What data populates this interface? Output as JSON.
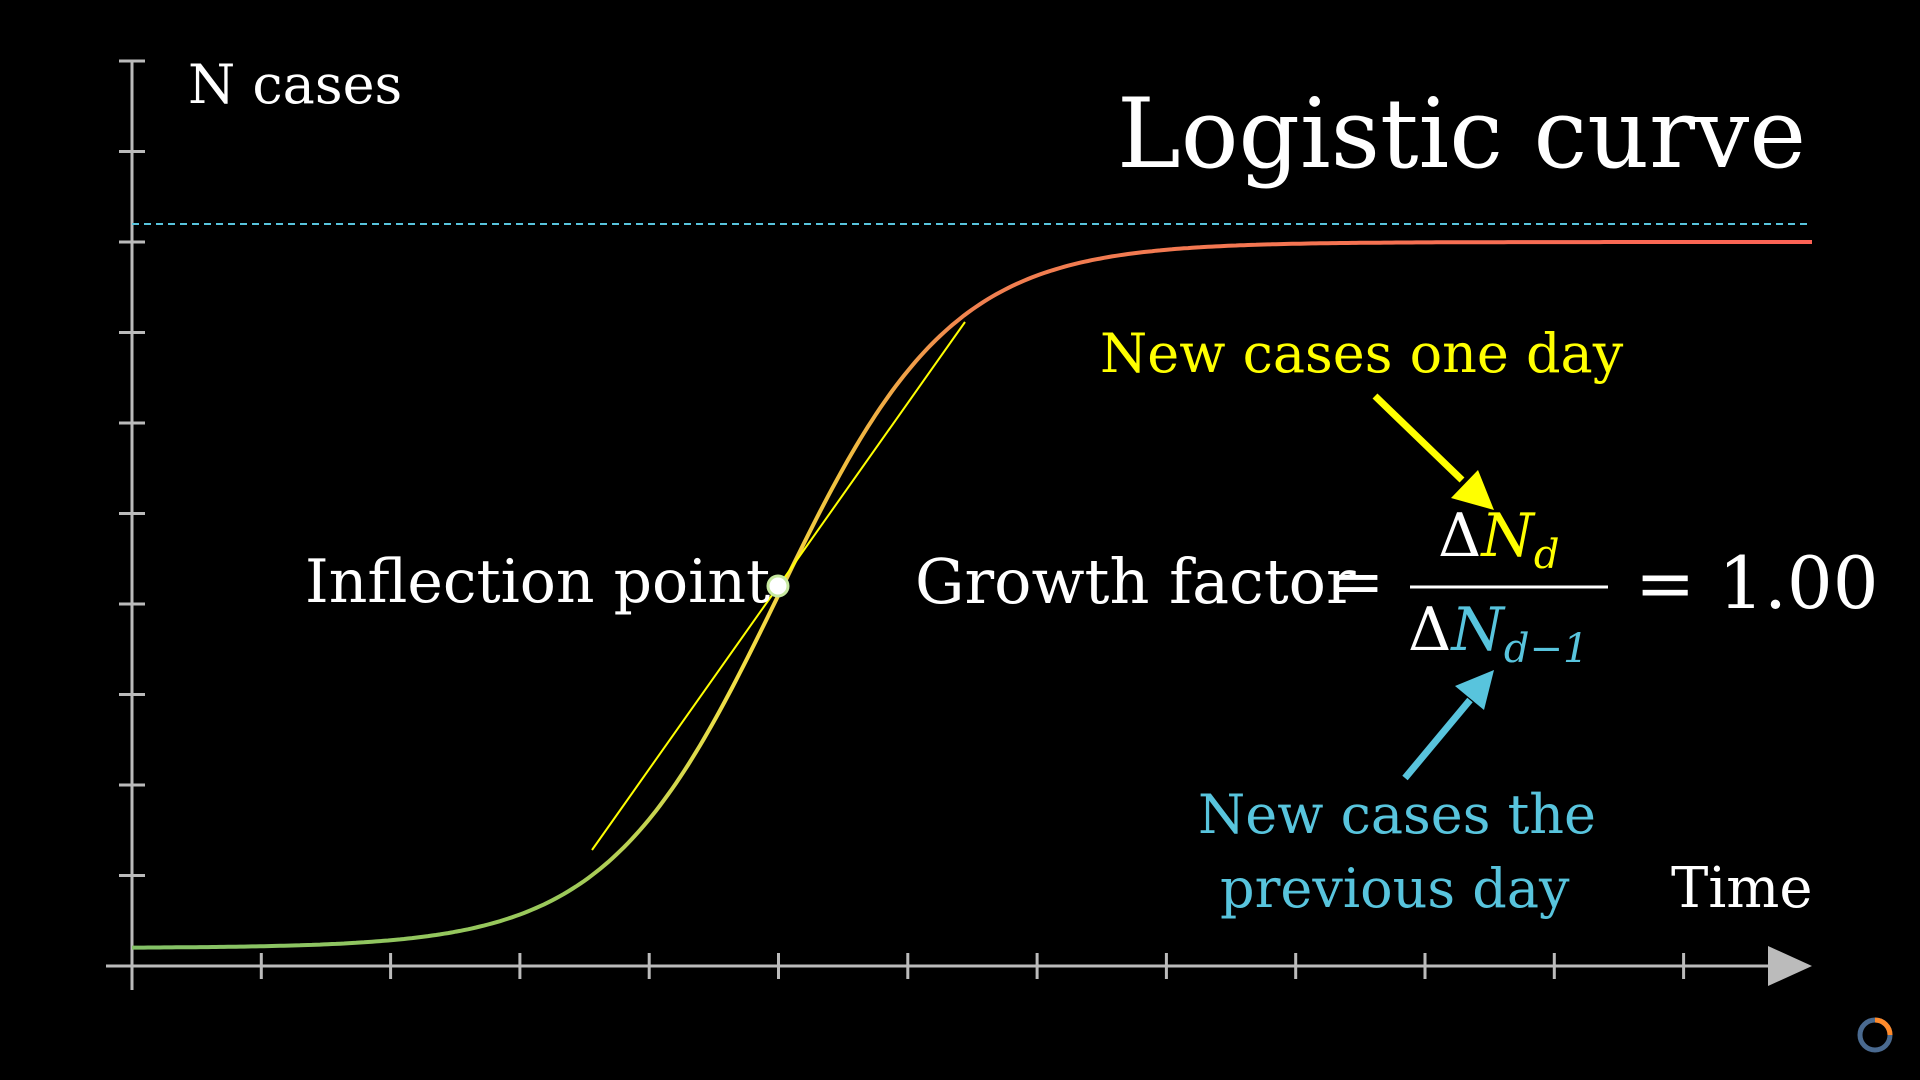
{
  "title": "Logistic curve",
  "y_axis_label": "N cases",
  "x_axis_label": "Time",
  "inflection_label": "Inflection point",
  "formula": {
    "lhs": "Growth factor",
    "equals": "=",
    "numerator_delta": "Δ",
    "numerator_var": "N",
    "numerator_sub": "d",
    "denominator_delta": "Δ",
    "denominator_var": "N",
    "denominator_sub": "d−1",
    "rhs": "= 1.00"
  },
  "annotation_top": "New cases one day",
  "annotation_bottom": [
    "New cases the",
    "previous day"
  ],
  "colors": {
    "background": "#000000",
    "axes": "#bbbbbb",
    "curve_start": "#83c167",
    "curve_end": "#fc6255",
    "tangent": "#ffff00",
    "asymptote": "#58c4dd",
    "annotation_top": "#ffff00",
    "annotation_bottom": "#58c4dd",
    "text": "#ffffff"
  },
  "chart_data": {
    "type": "line",
    "x_ticks": 13,
    "y_ticks": 10,
    "curve": "logistic",
    "inflection_at_tick": 5,
    "asymptote_at_tick": 8,
    "grid": false
  },
  "loader_icon": "loading-spinner-icon"
}
